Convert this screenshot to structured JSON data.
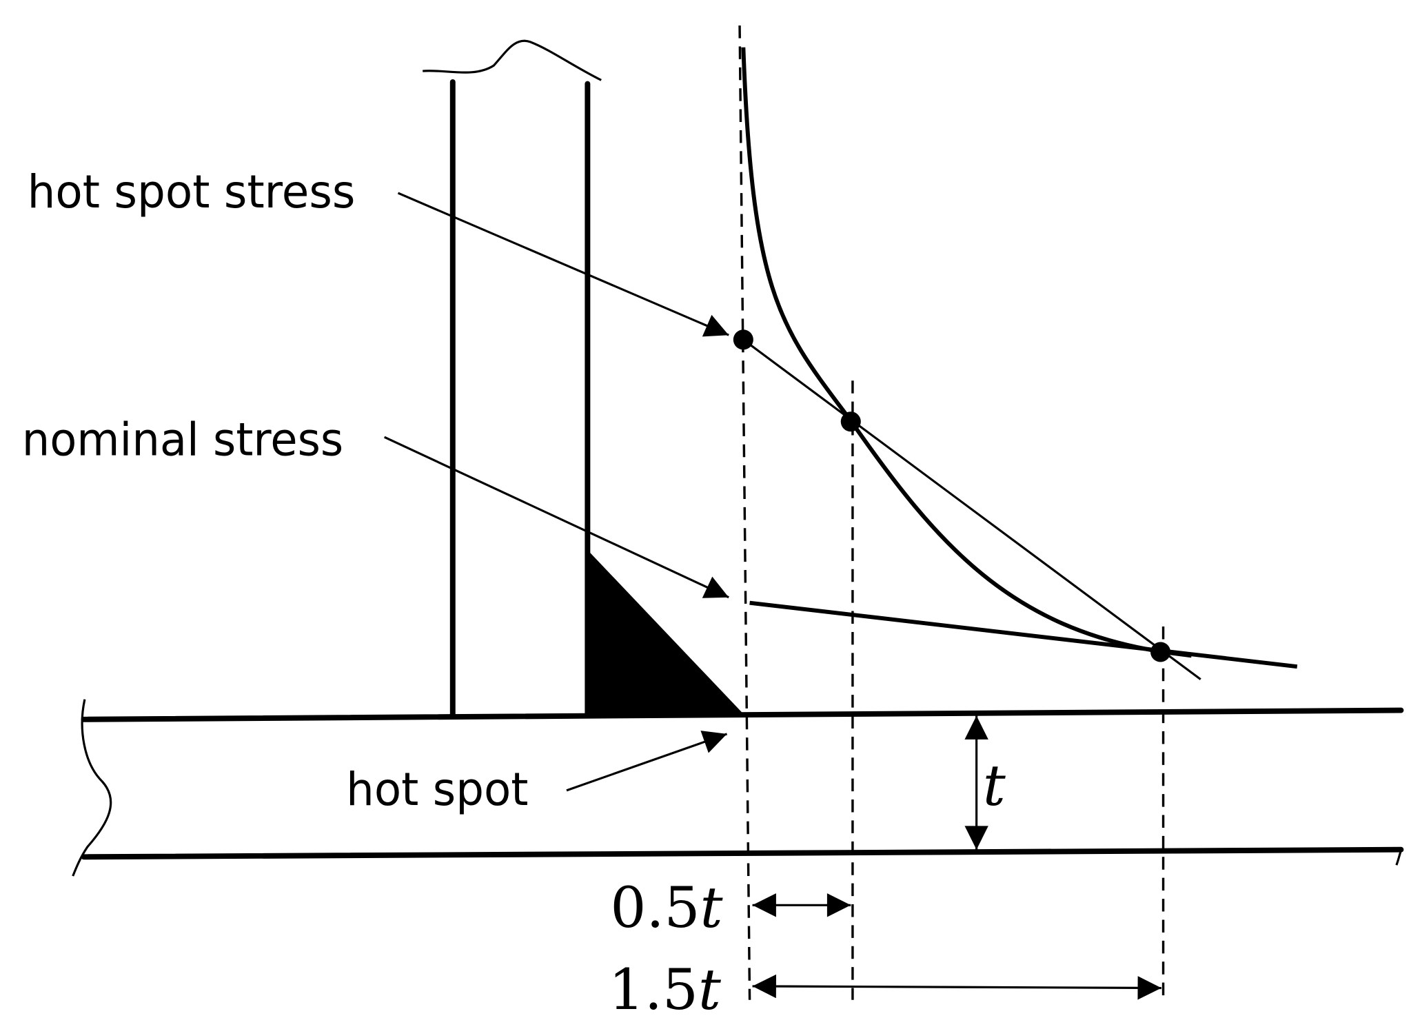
{
  "labels": {
    "hot_spot_stress": "hot spot stress",
    "nominal_stress": "nominal stress",
    "hot_spot": "hot spot",
    "thickness": "t",
    "dim_half": "0.5",
    "dim_half_var": "t",
    "dim_one_half": "1.5",
    "dim_one_half_var": "t"
  }
}
